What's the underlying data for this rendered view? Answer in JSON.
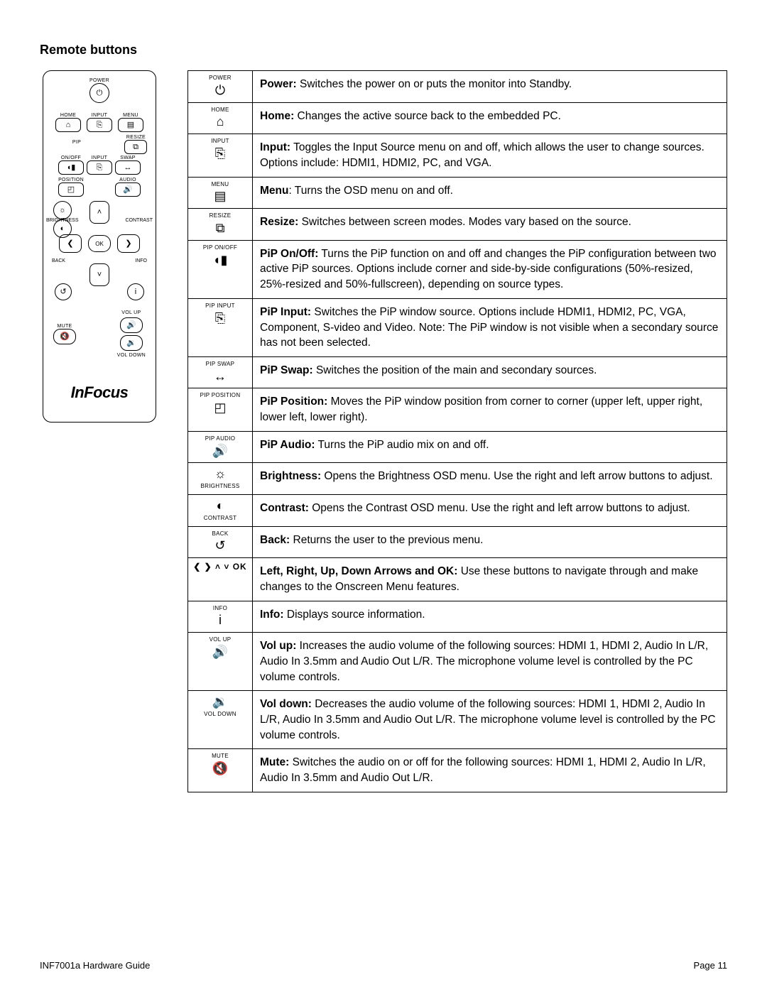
{
  "section_title": "Remote buttons",
  "remote": {
    "brand": "InFocus",
    "labels": {
      "power": "POWER",
      "home": "HOME",
      "input": "INPUT",
      "menu": "MENU",
      "resize": "RESIZE",
      "pip": "PIP",
      "onoff": "ON/OFF",
      "swap": "SWAP",
      "position": "POSITION",
      "audio": "AUDIO",
      "brightness": "BRIGHTNESS",
      "contrast": "CONTRAST",
      "back": "BACK",
      "info": "INFO",
      "ok": "OK",
      "volup": "VOL UP",
      "voldown": "VOL DOWN",
      "mute": "MUTE"
    }
  },
  "rows": [
    {
      "icon_label": "POWER",
      "glyph": "⏻",
      "bold": "Power:",
      "text": " Switches the power on or puts the monitor into Standby."
    },
    {
      "icon_label": "HOME",
      "glyph": "⌂",
      "bold": "Home:",
      "text": " Changes the active source back to the embedded PC."
    },
    {
      "icon_label": "INPUT",
      "glyph": "⎘",
      "bold": "Input:",
      "text": " Toggles the Input Source menu on and off, which allows the user to change sources. Options include: HDMI1, HDMI2, PC, and VGA."
    },
    {
      "icon_label": "MENU",
      "glyph": "▤",
      "bold": "Menu",
      "text": ": Turns the OSD menu on and off."
    },
    {
      "icon_label": "RESIZE",
      "glyph": "⧉",
      "bold": "Resize:",
      "text": " Switches between screen modes. Modes vary based on the source."
    },
    {
      "icon_label": "PIP ON/OFF",
      "glyph": "◖▮",
      "bold": "PiP On/Off:",
      "text": " Turns the PiP function on and off and changes the PiP configuration between two active PiP sources. Options include corner and side-by-side configurations (50%-resized, 25%-resized and 50%-fullscreen), depending on source types."
    },
    {
      "icon_label": "PIP INPUT",
      "glyph": "⎘",
      "bold": "PiP Input:",
      "text": " Switches the PiP window source. Options include HDMI1, HDMI2, PC, VGA, Component, S-video and Video. Note: The PiP window is not visible when a secondary source has not been selected."
    },
    {
      "icon_label": "PIP SWAP",
      "glyph": "↔",
      "bold": "PiP Swap:",
      "text": " Switches the position of the main and secondary sources."
    },
    {
      "icon_label": "PIP POSITION",
      "glyph": "◰",
      "bold": "PiP Position:",
      "text": " Moves the PiP window position from corner to corner (upper left, upper right, lower left, lower right)."
    },
    {
      "icon_label": "PIP AUDIO",
      "glyph": "🔊",
      "bold": "PiP Audio:",
      "text": " Turns the PiP audio mix on and off."
    },
    {
      "icon_label_below": "BRIGHTNESS",
      "glyph": "☼",
      "bold": "Brightness:",
      "text": " Opens the Brightness OSD menu. Use the right and left arrow buttons to adjust."
    },
    {
      "icon_label_below": "CONTRAST",
      "glyph": "◐",
      "bold": "Contrast:",
      "text": " Opens the Contrast OSD menu. Use the right and left arrow buttons to adjust."
    },
    {
      "icon_label": "BACK",
      "glyph": "↺",
      "bold": "Back:",
      "text": " Returns the user to the previous menu."
    },
    {
      "arrows": "❮ ❯ ˄ ˅ OK",
      "bold": "Left, Right, Up, Down Arrows and OK:",
      "text": " Use these buttons to navigate through and make changes to the Onscreen Menu features."
    },
    {
      "icon_label": "INFO",
      "glyph": "i",
      "bold": "Info:",
      "text": " Displays source information."
    },
    {
      "icon_label": "VOL UP",
      "glyph": "🔊",
      "bold": "Vol up:",
      "text": " Increases the audio volume of the following sources: HDMI 1, HDMI 2, Audio In L/R, Audio In 3.5mm and Audio Out L/R. The microphone volume level is controlled by the PC volume controls."
    },
    {
      "icon_label_below": "VOL DOWN",
      "glyph": "🔉",
      "bold": "Vol down:",
      "text": " Decreases the audio volume of the following sources: HDMI 1, HDMI 2, Audio In L/R, Audio In 3.5mm and Audio Out L/R. The microphone volume level is controlled by the PC volume controls."
    },
    {
      "icon_label": "MUTE",
      "glyph": "🔇",
      "bold": "Mute:",
      "text": " Switches the audio on or off for the following sources: HDMI 1, HDMI 2, Audio In L/R, Audio In 3.5mm and Audio Out L/R."
    }
  ],
  "footer": {
    "left": "INF7001a Hardware Guide",
    "right": "Page 11"
  }
}
